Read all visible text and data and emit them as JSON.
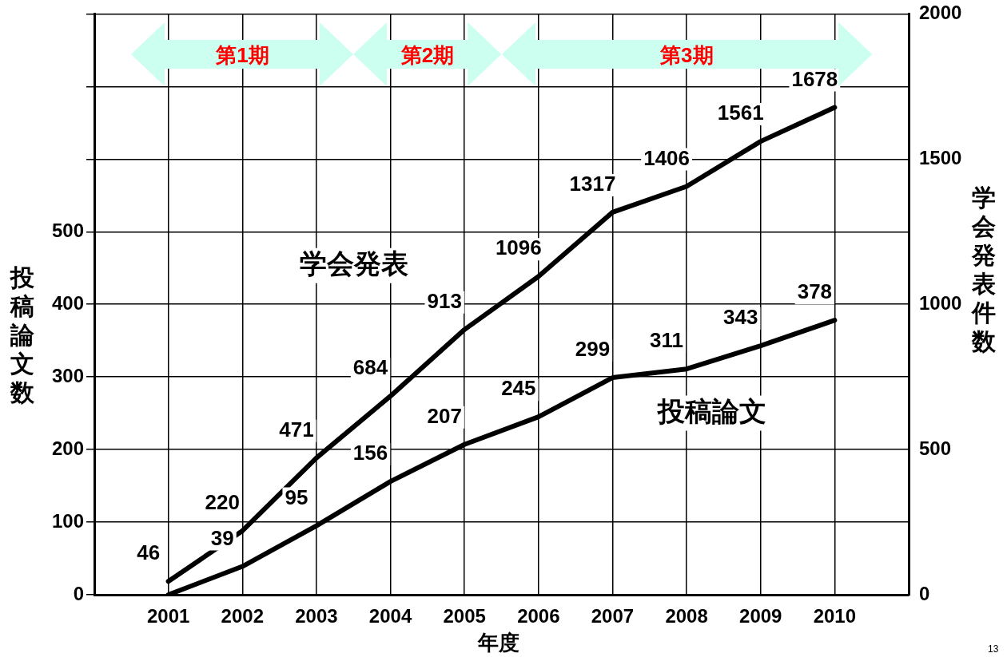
{
  "chart_data": {
    "type": "line",
    "xlabel": "年度",
    "ylabel": "投稿論文数",
    "y2label": "学会発表件数",
    "categories": [
      "2001",
      "2002",
      "2003",
      "2004",
      "2005",
      "2006",
      "2007",
      "2008",
      "2009",
      "2010"
    ],
    "series": [
      {
        "name": "学会発表",
        "color": "#000000",
        "axis": "y2",
        "values": [
          46,
          220,
          471,
          684,
          913,
          1096,
          1317,
          1406,
          1561,
          1678
        ],
        "value_labels": [
          "46",
          "220",
          "471",
          "684",
          "913",
          "1096",
          "1317",
          "1406",
          "1561",
          "1678"
        ]
      },
      {
        "name": "投稿論文",
        "color": "#000000",
        "values": [
          0,
          39,
          95,
          156,
          207,
          245,
          299,
          311,
          343,
          378
        ],
        "value_labels": [
          null,
          "39",
          "95",
          "156",
          "207",
          "245",
          "299",
          "311",
          "343",
          "378"
        ]
      }
    ],
    "ylim": [
      0,
      800
    ],
    "yticks": [
      0,
      100,
      200,
      300,
      400,
      500,
      {
        "value": 600,
        "label": null
      },
      {
        "value": 700,
        "label": null
      },
      {
        "value": 800,
        "label": null
      }
    ],
    "y2lim": [
      0,
      2000
    ],
    "y2ticks": [
      0,
      500,
      1000,
      1500,
      2000
    ],
    "grid": true,
    "legend": false,
    "marker": "none",
    "line_style": "solid",
    "annotations": [
      "第1期",
      "第2期",
      "第3期",
      "13"
    ]
  }
}
